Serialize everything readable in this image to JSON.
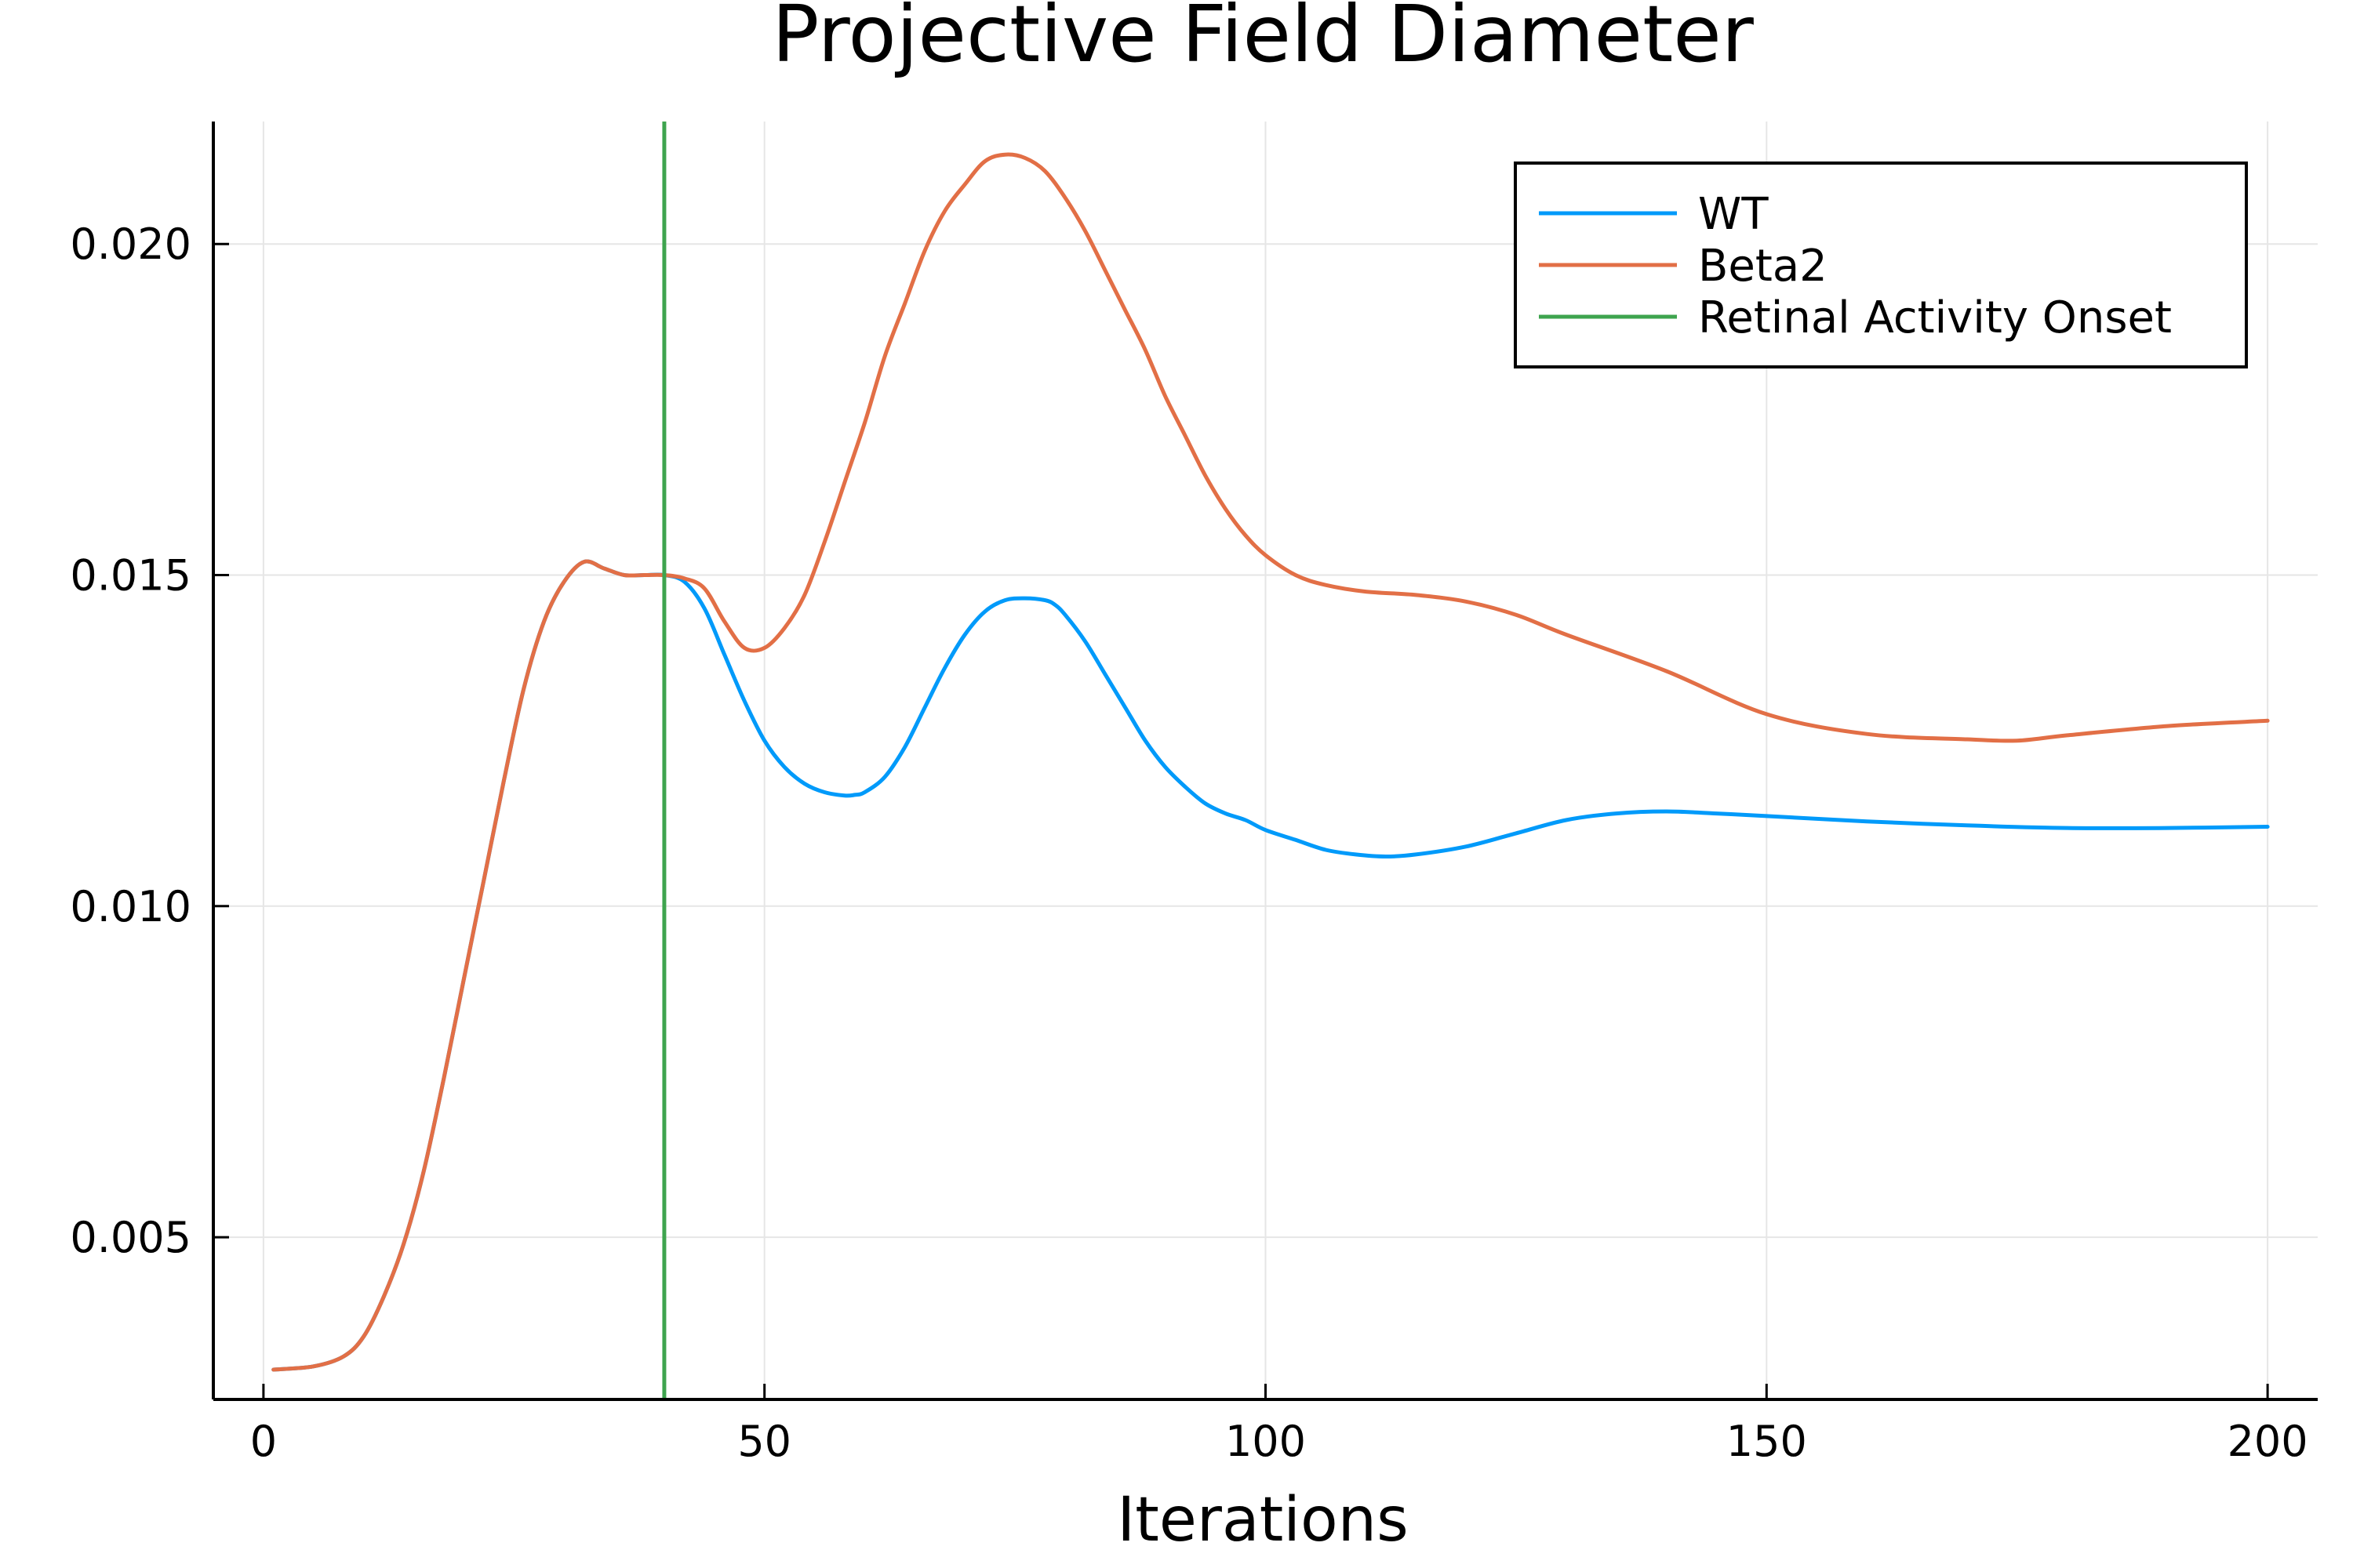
{
  "chart_data": {
    "type": "line",
    "title": "Projective Field Diameter",
    "xlabel": "Iterations",
    "ylabel": "",
    "xlim": [
      -5,
      205
    ],
    "ylim": [
      0.00255,
      0.02185
    ],
    "xticks": [
      0,
      50,
      100,
      150,
      200
    ],
    "xtick_labels": [
      "0",
      "50",
      "100",
      "150",
      "200"
    ],
    "yticks": [
      0.005,
      0.01,
      0.015,
      0.02
    ],
    "ytick_labels": [
      "0.005",
      "0.010",
      "0.015",
      "0.020"
    ],
    "grid": true,
    "legend": "top-right",
    "series": [
      {
        "name": "WT",
        "color": "#009AFA",
        "x": [
          1,
          5,
          8,
          10,
          12,
          14,
          16,
          18,
          20,
          22,
          24,
          26,
          28,
          30,
          32,
          34,
          36,
          38,
          40,
          42,
          44,
          46,
          48,
          50,
          52,
          54,
          56,
          58,
          59,
          60,
          62,
          64,
          66,
          68,
          70,
          72,
          74,
          76,
          78,
          79,
          80,
          82,
          84,
          86,
          88,
          90,
          92,
          94,
          96,
          98,
          100,
          103,
          106,
          109,
          112,
          115,
          120,
          125,
          130,
          135,
          140,
          145,
          150,
          160,
          170,
          180,
          190,
          200
        ],
        "y": [
          0.003,
          0.00305,
          0.0032,
          0.0035,
          0.0041,
          0.0049,
          0.006,
          0.0074,
          0.0089,
          0.0104,
          0.0119,
          0.0133,
          0.0143,
          0.0149,
          0.0152,
          0.0151,
          0.015,
          0.015,
          0.015,
          0.0149,
          0.0145,
          0.0138,
          0.0131,
          0.0125,
          0.0121,
          0.01185,
          0.01172,
          0.01167,
          0.01168,
          0.01172,
          0.01195,
          0.0124,
          0.013,
          0.0136,
          0.0141,
          0.01445,
          0.01462,
          0.01465,
          0.01462,
          0.01455,
          0.0144,
          0.014,
          0.0135,
          0.013,
          0.0125,
          0.0121,
          0.0118,
          0.01155,
          0.0114,
          0.0113,
          0.01115,
          0.011,
          0.01085,
          0.01078,
          0.01075,
          0.01078,
          0.0109,
          0.0111,
          0.0113,
          0.0114,
          0.01143,
          0.0114,
          0.01136,
          0.01128,
          0.01122,
          0.01118,
          0.01118,
          0.0112
        ]
      },
      {
        "name": "Beta2",
        "color": "#E26F46",
        "x": [
          1,
          5,
          8,
          10,
          12,
          14,
          16,
          18,
          20,
          22,
          24,
          26,
          28,
          30,
          32,
          34,
          36,
          38,
          40,
          42,
          44,
          46,
          48,
          50,
          52,
          54,
          56,
          58,
          60,
          62,
          64,
          66,
          68,
          70,
          72,
          74,
          76,
          78,
          80,
          82,
          84,
          86,
          88,
          90,
          92,
          94,
          96,
          98,
          100,
          103,
          106,
          110,
          115,
          120,
          125,
          130,
          140,
          150,
          160,
          170,
          175,
          180,
          190,
          200
        ],
        "y": [
          0.003,
          0.00305,
          0.0032,
          0.0035,
          0.0041,
          0.0049,
          0.006,
          0.0074,
          0.0089,
          0.0104,
          0.0119,
          0.0133,
          0.0143,
          0.0149,
          0.0152,
          0.0151,
          0.015,
          0.015,
          0.015,
          0.01495,
          0.0148,
          0.0143,
          0.0139,
          0.0139,
          0.0142,
          0.0147,
          0.0155,
          0.0164,
          0.0173,
          0.0183,
          0.0191,
          0.0199,
          0.0205,
          0.0209,
          0.02125,
          0.02135,
          0.0213,
          0.0211,
          0.0207,
          0.0202,
          0.0196,
          0.019,
          0.0184,
          0.0177,
          0.0171,
          0.0165,
          0.016,
          0.0156,
          0.0153,
          0.015,
          0.01485,
          0.01475,
          0.0147,
          0.0146,
          0.0144,
          0.0141,
          0.01355,
          0.0129,
          0.0126,
          0.01252,
          0.0125,
          0.01258,
          0.01272,
          0.0128
        ]
      }
    ],
    "vlines": [
      {
        "name": "Retinal Activity Onset",
        "color": "#3EA44E",
        "x": 40
      }
    ]
  }
}
